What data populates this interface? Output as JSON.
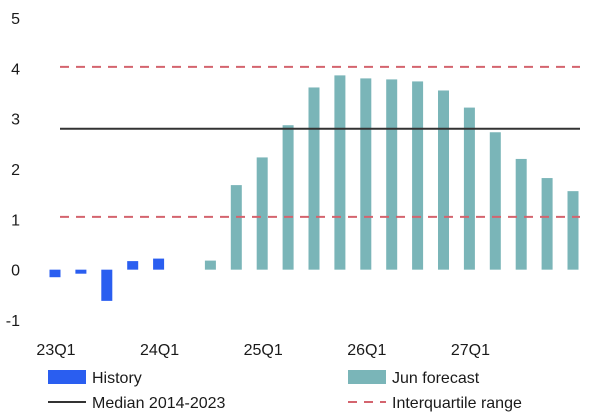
{
  "chart_data": {
    "type": "bar",
    "ylim": [
      -1,
      5
    ],
    "yticks": [
      -1,
      0,
      1,
      2,
      3,
      4,
      5
    ],
    "xtick_labels": [
      {
        "label": "23Q1",
        "index": 0
      },
      {
        "label": "24Q1",
        "index": 4
      },
      {
        "label": "25Q1",
        "index": 8
      },
      {
        "label": "26Q1",
        "index": 12
      },
      {
        "label": "27Q1",
        "index": 16
      }
    ],
    "n_periods": 21,
    "series": [
      {
        "name": "History",
        "color": "#2a5ef0",
        "start_index": 0,
        "values": [
          -0.15,
          -0.08,
          -0.62,
          0.17,
          0.22
        ]
      },
      {
        "name": "Jun forecast",
        "color": "#7ab5b8",
        "start_index": 6,
        "values": [
          0.18,
          1.68,
          2.23,
          2.87,
          3.62,
          3.86,
          3.8,
          3.78,
          3.74,
          3.56,
          3.22,
          2.73,
          2.2,
          1.82,
          1.56
        ]
      }
    ],
    "reference_lines": [
      {
        "name": "Median 2014-2023",
        "value": 2.8,
        "style": "solid",
        "color": "#333333"
      },
      {
        "name": "Interquartile range",
        "values": [
          1.05,
          4.03
        ],
        "style": "dashed",
        "color": "#d4646e"
      }
    ],
    "legend": [
      {
        "label": "History",
        "kind": "bar",
        "color": "#2a5ef0"
      },
      {
        "label": "Jun forecast",
        "kind": "bar",
        "color": "#7ab5b8"
      },
      {
        "label": "Median 2014-2023",
        "kind": "solid",
        "color": "#333333"
      },
      {
        "label": "Interquartile range",
        "kind": "dashed",
        "color": "#d4646e"
      }
    ],
    "legend_position": "bottom",
    "grid": false
  }
}
